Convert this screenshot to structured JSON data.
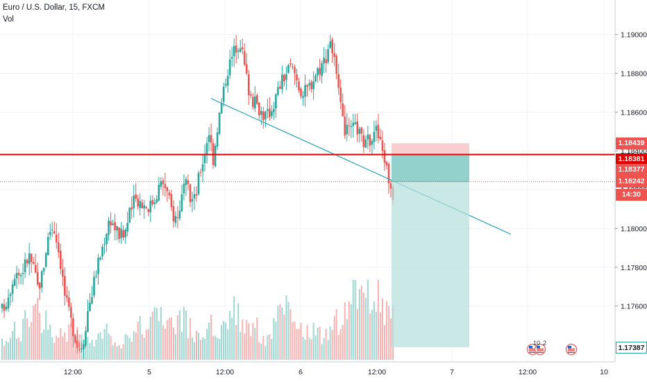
{
  "legend": {
    "title": "Euro / U.S. Dollar, 15, FXCM",
    "indicator": "Vol"
  },
  "price_tags": {
    "stop": "1.18439",
    "hline": "1.18381",
    "entry": "1.18377",
    "last": "1.18242",
    "countdown": "14:30",
    "target": "1.17387"
  },
  "event_badges": {
    "count": "10",
    "count2": "2"
  },
  "colors": {
    "up": "#26a69a",
    "down": "#ef5350",
    "hline": "#e00000",
    "trendline": "#2aa3b8",
    "stop_zone": "#f7c5c5",
    "target_zone": "#b3e0dc",
    "axis_text": "#131722",
    "grid": "#f0f3fa"
  },
  "chart_data": {
    "type": "candlestick",
    "title": "Euro / U.S. Dollar, 15, FXCM",
    "x_ticks": [
      "12:00",
      "5",
      "12:00",
      "6",
      "12:00",
      "7",
      "12:00",
      "10"
    ],
    "y_ticks": [
      1.19,
      1.188,
      1.186,
      1.184,
      1.182,
      1.18,
      1.178,
      1.176
    ],
    "y_tick_labels": [
      "1.19000",
      "1.18800",
      "1.18600",
      "1.18400",
      "1.18200",
      "1.18000",
      "1.17800",
      "1.17600"
    ],
    "ylim": [
      1.1733,
      1.1916
    ],
    "horizontal_line": 1.18381,
    "last_price": 1.18242,
    "position": {
      "entry": 1.18377,
      "stop": 1.18439,
      "target": 1.17387
    },
    "trendline": {
      "start_price": 1.1867,
      "end_price": 1.1797
    },
    "close_path": [
      1.1758,
      1.1763,
      1.1771,
      1.1779,
      1.1776,
      1.1781,
      1.1786,
      1.1779,
      1.1769,
      1.1777,
      1.1793,
      1.1802,
      1.1797,
      1.1783,
      1.1765,
      1.1755,
      1.1747,
      1.1738,
      1.1741,
      1.1757,
      1.1767,
      1.1779,
      1.1787,
      1.1797,
      1.1806,
      1.1801,
      1.1797,
      1.1796,
      1.1804,
      1.1812,
      1.1816,
      1.1813,
      1.1812,
      1.1812,
      1.1816,
      1.1822,
      1.1824,
      1.1816,
      1.1807,
      1.1805,
      1.1817,
      1.1822,
      1.1815,
      1.1815,
      1.1829,
      1.1838,
      1.1851,
      1.1836,
      1.1854,
      1.1866,
      1.1881,
      1.1887,
      1.1894,
      1.1897,
      1.1883,
      1.1871,
      1.1865,
      1.1863,
      1.1859,
      1.1858,
      1.1862,
      1.1868,
      1.1875,
      1.1879,
      1.1883,
      1.1881,
      1.1874,
      1.1869,
      1.1872,
      1.1876,
      1.1881,
      1.1884,
      1.1888,
      1.1898,
      1.1886,
      1.1867,
      1.1852,
      1.1849,
      1.1851,
      1.1852,
      1.1846,
      1.1843,
      1.1847,
      1.1853,
      1.1845,
      1.1838,
      1.1826,
      1.1818
    ],
    "volume_path": [
      0.2,
      0.25,
      0.35,
      0.3,
      0.45,
      0.5,
      0.65,
      0.55,
      0.4,
      0.35,
      0.3,
      0.35,
      0.4,
      0.3,
      0.25,
      0.25,
      0.2,
      0.3,
      0.35,
      0.3,
      0.2,
      0.25,
      0.35,
      0.3,
      0.4,
      0.45,
      0.5,
      0.55,
      0.45,
      0.4,
      0.5,
      0.55,
      0.45,
      0.35,
      0.3,
      0.35,
      0.4,
      0.45,
      0.4,
      0.5,
      0.6,
      0.55,
      0.5,
      0.45,
      0.45,
      0.3,
      0.2,
      0.4,
      0.55,
      0.65,
      0.5,
      0.4,
      0.35,
      0.4,
      0.35,
      0.3,
      0.3,
      0.35,
      0.45,
      0.55,
      0.7,
      0.8,
      0.75,
      0.85,
      0.9,
      0.95,
      0.75,
      0.6,
      0.5
    ]
  }
}
